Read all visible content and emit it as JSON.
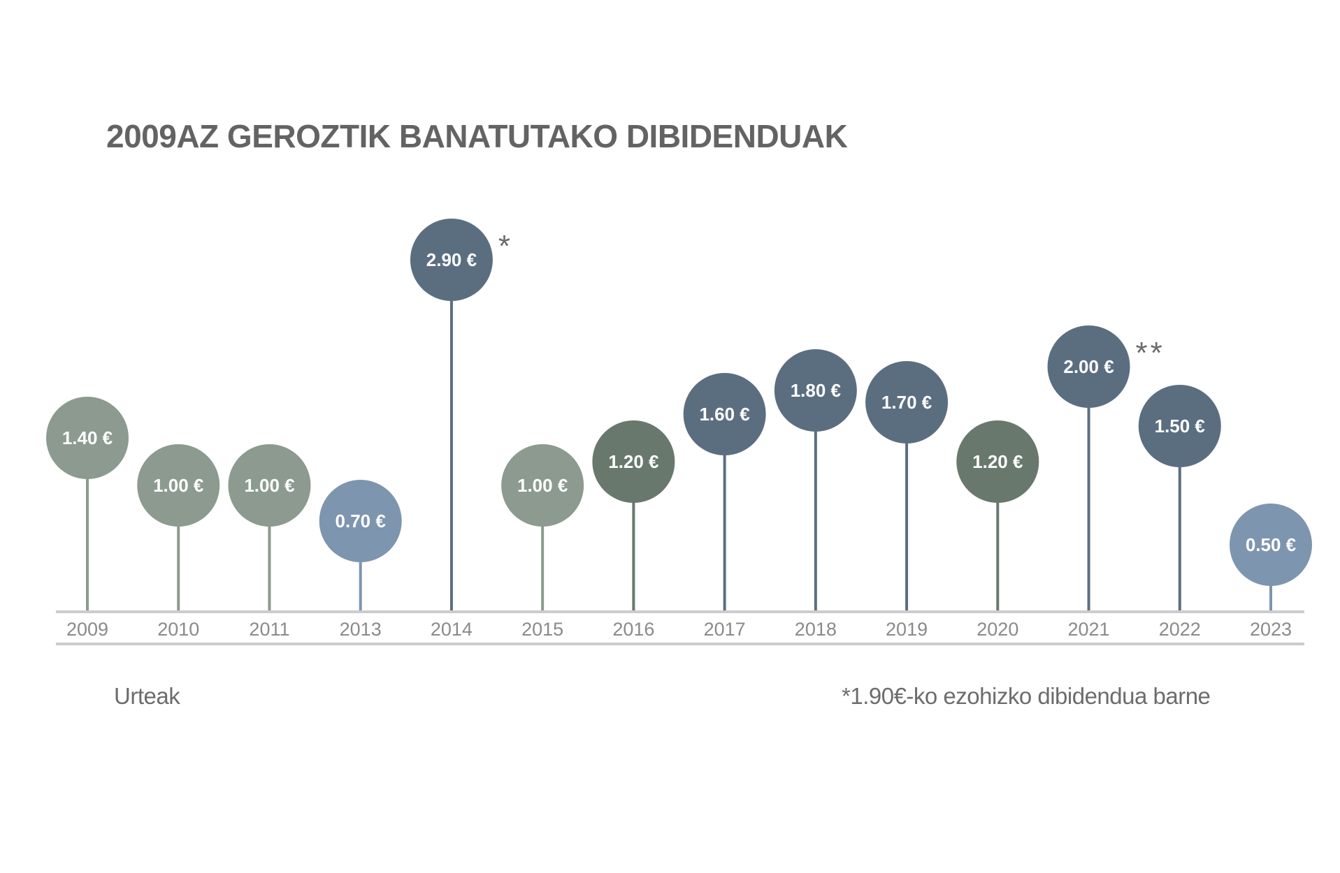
{
  "chart_data": {
    "type": "lollipop",
    "title": "2009AZ GEROZTIK BANATUTAKO DIBIDENDUAK",
    "xlabel": "Urteak",
    "ylabel": "",
    "categories": [
      "2009",
      "2010",
      "2011",
      "2013",
      "2014",
      "2015",
      "2016",
      "2017",
      "2018",
      "2019",
      "2020",
      "2021",
      "2022",
      "2023"
    ],
    "values": [
      1.4,
      1.0,
      1.0,
      0.7,
      2.9,
      1.0,
      1.2,
      1.6,
      1.8,
      1.7,
      1.2,
      2.0,
      1.5,
      0.5
    ],
    "value_labels": [
      "1.40 €",
      "1.00 €",
      "1.00 €",
      "0.70 €",
      "2.90 €",
      "1.00 €",
      "1.20 €",
      "1.60 €",
      "1.80 €",
      "1.70 €",
      "1.20 €",
      "2.00 €",
      "1.50 €",
      "0.50 €"
    ],
    "marker_colors": [
      "#8c9a8f",
      "#8c9a8f",
      "#8c9a8f",
      "#7d95af",
      "#5b6e80",
      "#8c9a8f",
      "#68786c",
      "#5b6e80",
      "#5b6e80",
      "#5b6e80",
      "#68786c",
      "#5b6e80",
      "#5b6e80",
      "#7d95af"
    ],
    "annotations": [
      {
        "category": "2014",
        "text": "*"
      },
      {
        "category": "2021",
        "text": "**"
      }
    ],
    "footnote": "*1.90€-ko ezohizko dibidendua barne",
    "grid": false,
    "colors": {
      "axis_line": "#cccccc",
      "tick_text": "#8a8a8a",
      "title": "#636363",
      "annotation": "#6c6c6c",
      "bubble_text": "#ffffff"
    }
  }
}
